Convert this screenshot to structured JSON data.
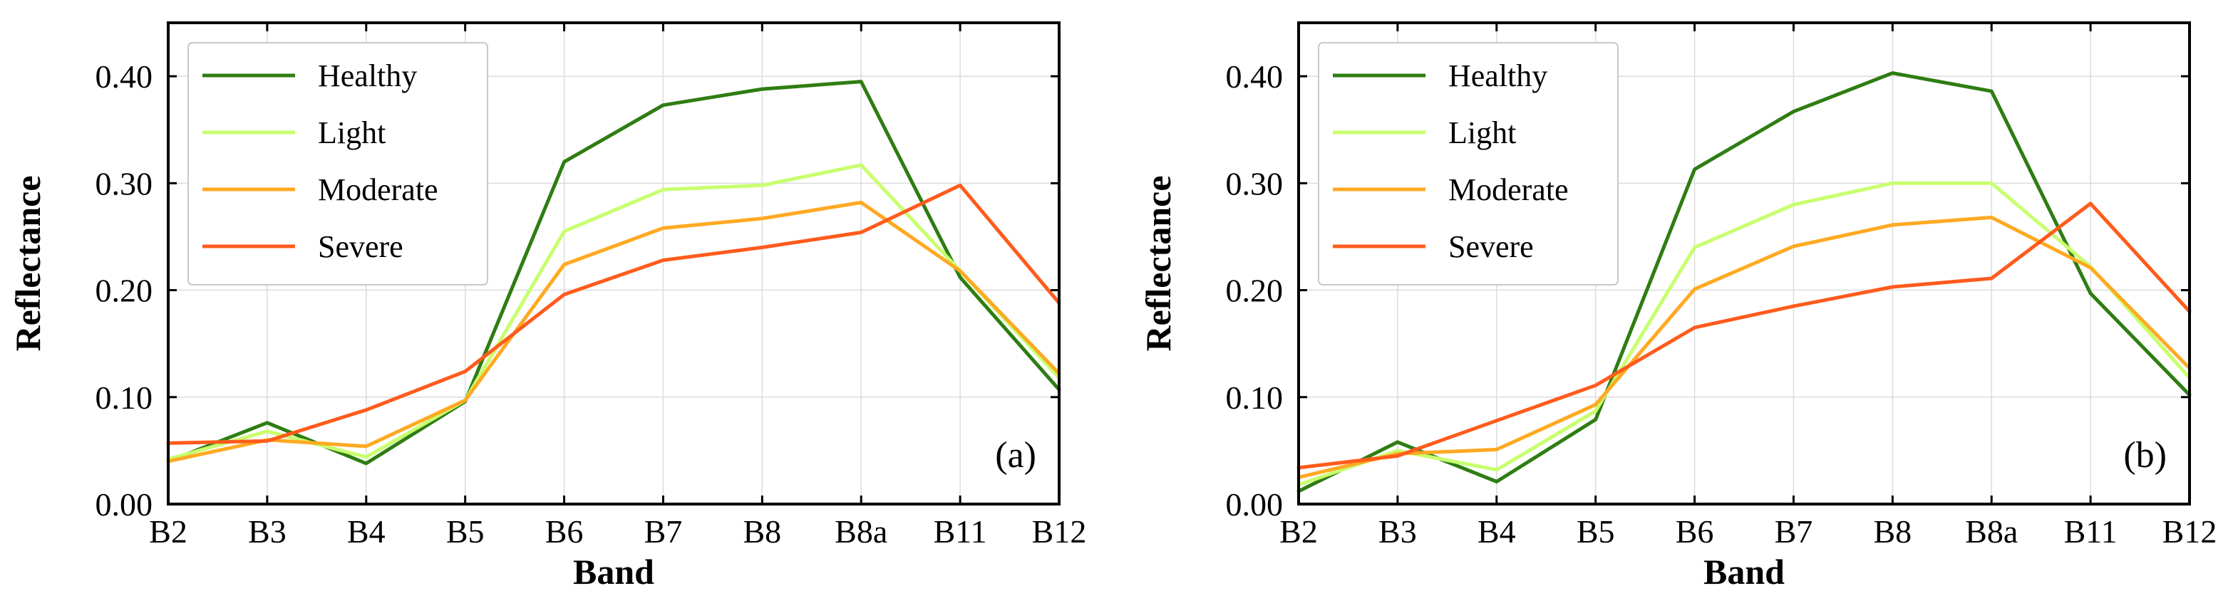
{
  "chart_data": [
    {
      "type": "line",
      "panel_label": "(a)",
      "xlabel": "Band",
      "ylabel": "Reflectance",
      "categories": [
        "B2",
        "B3",
        "B4",
        "B5",
        "B6",
        "B7",
        "B8",
        "B8a",
        "B11",
        "B12"
      ],
      "ylim": [
        0,
        0.45
      ],
      "yticks": [
        "0.00",
        "0.10",
        "0.20",
        "0.30",
        "0.40"
      ],
      "grid": true,
      "legend_position": "top-left",
      "series": [
        {
          "name": "Healthy",
          "color": "#2e7d12",
          "values": [
            0.04,
            0.076,
            0.038,
            0.096,
            0.32,
            0.373,
            0.388,
            0.395,
            0.212,
            0.107
          ]
        },
        {
          "name": "Light",
          "color": "#c8ff6e",
          "values": [
            0.042,
            0.068,
            0.044,
            0.097,
            0.255,
            0.294,
            0.298,
            0.317,
            0.218,
            0.118
          ]
        },
        {
          "name": "Moderate",
          "color": "#ffa922",
          "values": [
            0.04,
            0.06,
            0.054,
            0.097,
            0.224,
            0.258,
            0.267,
            0.282,
            0.218,
            0.122
          ]
        },
        {
          "name": "Severe",
          "color": "#ff5b1c",
          "values": [
            0.057,
            0.059,
            0.088,
            0.124,
            0.196,
            0.228,
            0.24,
            0.254,
            0.298,
            0.188
          ]
        }
      ]
    },
    {
      "type": "line",
      "panel_label": "(b)",
      "xlabel": "Band",
      "ylabel": "Reflectance",
      "categories": [
        "B2",
        "B3",
        "B4",
        "B5",
        "B6",
        "B7",
        "B8",
        "B8a",
        "B11",
        "B12"
      ],
      "ylim": [
        0,
        0.45
      ],
      "yticks": [
        "0.00",
        "0.10",
        "0.20",
        "0.30",
        "0.40"
      ],
      "grid": true,
      "legend_position": "top-left",
      "series": [
        {
          "name": "Healthy",
          "color": "#2e7d12",
          "values": [
            0.012,
            0.058,
            0.021,
            0.079,
            0.313,
            0.367,
            0.403,
            0.386,
            0.197,
            0.102
          ]
        },
        {
          "name": "Light",
          "color": "#c8ff6e",
          "values": [
            0.018,
            0.05,
            0.032,
            0.087,
            0.24,
            0.28,
            0.3,
            0.3,
            0.222,
            0.118
          ]
        },
        {
          "name": "Moderate",
          "color": "#ffa922",
          "values": [
            0.025,
            0.047,
            0.051,
            0.093,
            0.201,
            0.241,
            0.261,
            0.268,
            0.221,
            0.127
          ]
        },
        {
          "name": "Severe",
          "color": "#ff5b1c",
          "values": [
            0.034,
            0.045,
            0.078,
            0.111,
            0.165,
            0.185,
            0.203,
            0.211,
            0.281,
            0.18
          ]
        }
      ]
    }
  ]
}
